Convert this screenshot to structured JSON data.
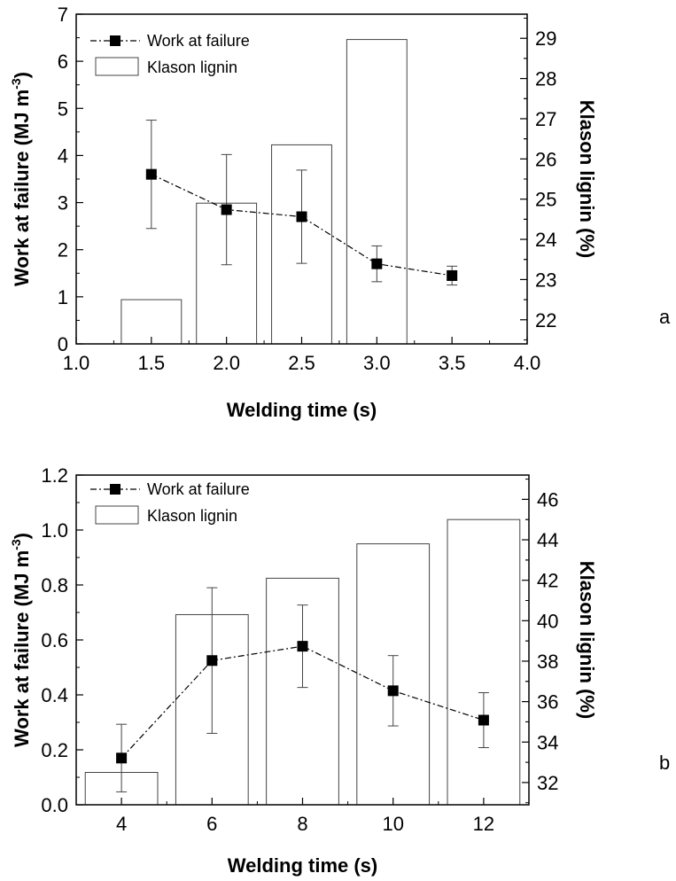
{
  "chart_data": [
    {
      "type": "bar+line",
      "panel_label": "a",
      "xlabel": "Welding time (s)",
      "ylabel_left": "Work at failure (MJ m",
      "ylabel_left_sup": "-3",
      "ylabel_left_close": ")",
      "ylabel_right": "Klason lignin (%)",
      "xlim": [
        1.0,
        4.0
      ],
      "ylim_left": [
        0,
        7
      ],
      "ylim_right": [
        21.4,
        29.6
      ],
      "x_ticks": [
        "1.0",
        "1.5",
        "2.0",
        "2.5",
        "3.0",
        "3.5",
        "4.0"
      ],
      "y_left_ticks": [
        "0",
        "1",
        "2",
        "3",
        "4",
        "5",
        "6",
        "7"
      ],
      "y_right_ticks": [
        "22",
        "23",
        "24",
        "25",
        "26",
        "27",
        "28",
        "29"
      ],
      "legend": {
        "placement": "top-left",
        "line_label": "Work at failure",
        "bar_label": "Klason lignin"
      },
      "line_series": {
        "name": "Work at failure",
        "x": [
          1.5,
          2.0,
          2.5,
          3.0,
          3.5
        ],
        "y": [
          3.6,
          2.85,
          2.7,
          1.7,
          1.45
        ],
        "err": [
          1.15,
          1.17,
          0.99,
          0.38,
          0.2
        ]
      },
      "bar_series": {
        "name": "Klason lignin",
        "x": [
          1.5,
          2.0,
          2.5,
          3.0
        ],
        "y": [
          22.5,
          24.9,
          26.35,
          28.97
        ],
        "width": 0.4
      }
    },
    {
      "type": "bar+line",
      "panel_label": "b",
      "xlabel": "Welding time (s)",
      "ylabel_left": "Work at failure (MJ m",
      "ylabel_left_sup": "-3",
      "ylabel_left_close": ")",
      "ylabel_right": "Klason lignin (%)",
      "xlim": [
        3,
        13
      ],
      "ylim_left": [
        0,
        1.2
      ],
      "ylim_right": [
        30.9,
        47.2
      ],
      "x_ticks": [
        "4",
        "6",
        "8",
        "10",
        "12"
      ],
      "y_left_ticks": [
        "0.0",
        "0.2",
        "0.4",
        "0.6",
        "0.8",
        "1.0",
        "1.2"
      ],
      "y_right_ticks": [
        "32",
        "34",
        "36",
        "38",
        "40",
        "42",
        "44",
        "46"
      ],
      "legend": {
        "placement": "top-left",
        "line_label": "Work at failure",
        "bar_label": "Klason lignin"
      },
      "line_series": {
        "name": "Work at failure",
        "x": [
          4,
          6,
          8,
          10,
          12
        ],
        "y": [
          0.17,
          0.525,
          0.577,
          0.415,
          0.308
        ],
        "err": [
          0.123,
          0.265,
          0.15,
          0.128,
          0.1
        ]
      },
      "bar_series": {
        "name": "Klason lignin",
        "x": [
          4,
          6,
          8,
          10,
          12
        ],
        "y": [
          32.5,
          40.3,
          42.1,
          43.8,
          45.0
        ],
        "width": 1.6
      }
    }
  ]
}
